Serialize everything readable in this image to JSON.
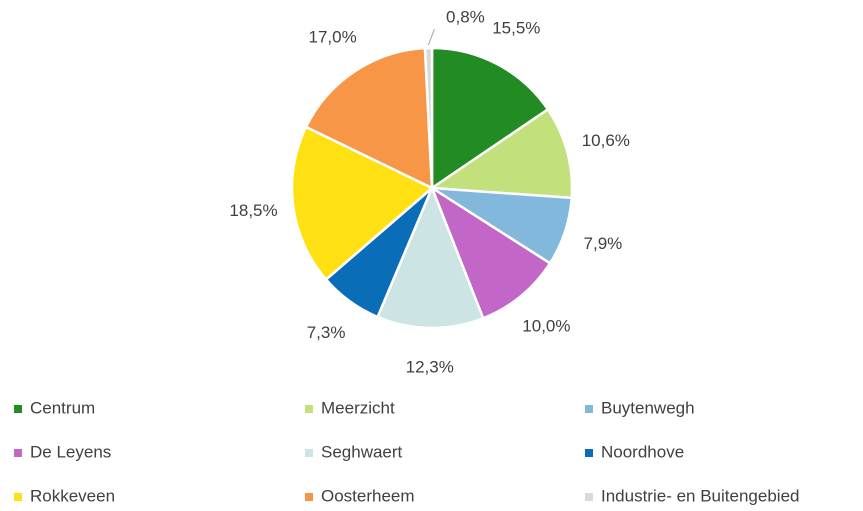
{
  "chart_data": {
    "type": "pie",
    "categories": [
      "Centrum",
      "Meerzicht",
      "Buytenwegh",
      "De Leyens",
      "Seghwaert",
      "Noordhove",
      "Rokkeveen",
      "Oosterheem",
      "Industrie- en Buitengebied"
    ],
    "values": [
      15.5,
      10.6,
      7.9,
      10.0,
      12.3,
      7.3,
      18.5,
      17.0,
      0.8
    ],
    "value_labels": [
      "15,5%",
      "10,6%",
      "7,9%",
      "10,0%",
      "12,3%",
      "7,3%",
      "18,5%",
      "17,0%",
      "0,8%"
    ],
    "colors": [
      "#238b23",
      "#c2e07c",
      "#83b8dd",
      "#c266c8",
      "#cde4e4",
      "#0a6db7",
      "#ffe013",
      "#f79646",
      "#d9d9d9"
    ],
    "legend": "bottom"
  }
}
